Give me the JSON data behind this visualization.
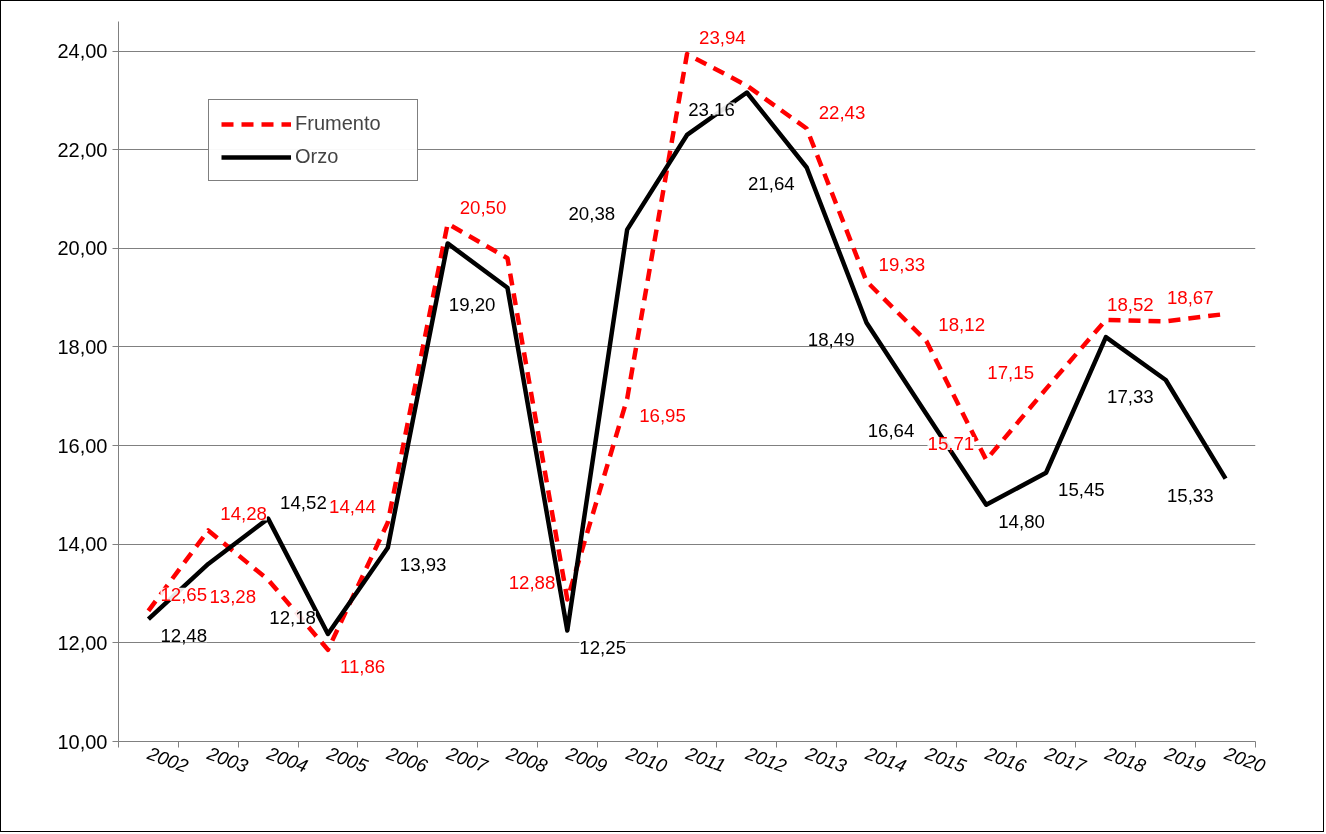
{
  "chart_data": {
    "type": "line",
    "categories": [
      "2002",
      "2003",
      "2004",
      "2005",
      "2006",
      "2007",
      "2008",
      "2009",
      "2010",
      "2011",
      "2012",
      "2013",
      "2014",
      "2015",
      "2016",
      "2017",
      "2018",
      "2019",
      "2020"
    ],
    "series": [
      {
        "name": "Frumento",
        "color": "#ff0000",
        "line_style": "dashed",
        "values": [
          12.65,
          14.28,
          13.28,
          11.86,
          14.44,
          20.5,
          19.8,
          12.88,
          16.95,
          23.94,
          23.3,
          22.43,
          19.33,
          18.12,
          15.71,
          17.15,
          18.55,
          18.52,
          18.67
        ],
        "value_labels": [
          "12,65",
          "14,28",
          "13,28",
          "11,86",
          "14,44",
          "20,50",
          null,
          "12,88",
          "16,95",
          "23,94",
          null,
          "22,43",
          "19,33",
          "18,12",
          "15,71",
          "17,15",
          null,
          "18,52",
          "18,67"
        ]
      },
      {
        "name": "Orzo",
        "color": "#000000",
        "line_style": "solid",
        "values": [
          12.48,
          13.6,
          14.52,
          12.18,
          13.93,
          20.1,
          19.2,
          12.25,
          20.38,
          22.3,
          23.16,
          21.64,
          18.49,
          16.64,
          14.8,
          15.45,
          18.2,
          17.33,
          15.33
        ],
        "value_labels": [
          "12,48",
          null,
          "14,52",
          "12,18",
          "13,93",
          null,
          "19,20",
          "12,25",
          "20,38",
          null,
          "23,16",
          "21,64",
          "18,49",
          "16,64",
          "14,80",
          "15,45",
          null,
          "17,33",
          "15,33"
        ]
      }
    ],
    "ylim": [
      10,
      24.6
    ],
    "yticks": [
      {
        "value": 10,
        "label": "10,00"
      },
      {
        "value": 12,
        "label": "12,00"
      },
      {
        "value": 14,
        "label": "14,00"
      },
      {
        "value": 16,
        "label": "16,00"
      },
      {
        "value": 18,
        "label": "18,00"
      },
      {
        "value": 20,
        "label": "20,00"
      },
      {
        "value": 22,
        "label": "22,00"
      },
      {
        "value": 24,
        "label": "24,00"
      }
    ],
    "grid": "y",
    "legend": "top left",
    "marker": "none"
  }
}
